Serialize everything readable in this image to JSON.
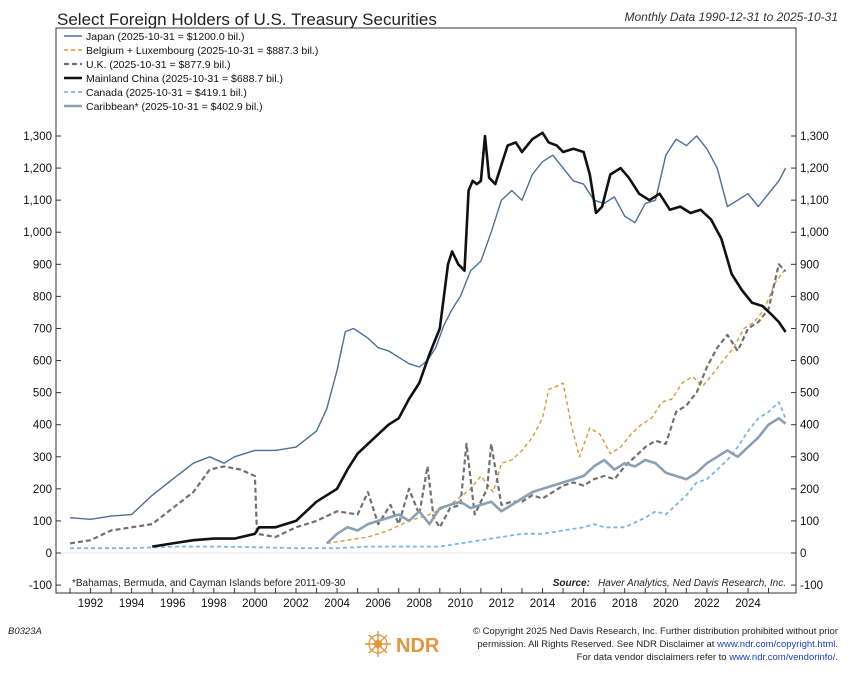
{
  "header": {
    "title": "Select Foreign Holders of U.S. Treasury Securities",
    "subtitle": "Monthly Data 1990-12-31 to 2025-10-31"
  },
  "colors": {
    "japan": "#4a6f9c",
    "belgium": "#e0963a",
    "uk": "#707070",
    "china": "#111111",
    "canada": "#7ab6e6",
    "caribbean": "#8aa0b4",
    "logo": "#e0963a"
  },
  "chart_data": {
    "type": "line",
    "title": "Select Foreign Holders of U.S. Treasury Securities",
    "xlabel": "",
    "ylabel": "",
    "xlim": [
      1991.0,
      2025.85
    ],
    "ylim": [
      -100,
      1350
    ],
    "y_ticks": [
      -100,
      0,
      100,
      200,
      300,
      400,
      500,
      600,
      700,
      800,
      900,
      1000,
      1100,
      1200,
      1300
    ],
    "y_tick_labels": [
      "-100",
      "0",
      "100",
      "200",
      "300",
      "400",
      "500",
      "600",
      "700",
      "800",
      "900",
      "1,000",
      "1,100",
      "1,200",
      "1,300"
    ],
    "x_ticks": [
      1992,
      1994,
      1996,
      1998,
      2000,
      2002,
      2004,
      2006,
      2008,
      2010,
      2012,
      2014,
      2016,
      2018,
      2020,
      2022,
      2024
    ],
    "legend_position": "top-left",
    "series": [
      {
        "key": "japan",
        "name": "Japan (2025-10-31 = $1200.0 bil.)",
        "style": "solid",
        "width": 1.4,
        "x": [
          1991.0,
          1992.0,
          1993.0,
          1994.0,
          1995.0,
          1996.0,
          1997.0,
          1997.8,
          1998.5,
          1999.0,
          2000.0,
          2001.0,
          2002.0,
          2003.0,
          2003.5,
          2004.0,
          2004.4,
          2004.8,
          2005.5,
          2006.0,
          2006.5,
          2007.0,
          2007.5,
          2008.0,
          2008.4,
          2008.8,
          2009.2,
          2009.6,
          2010.0,
          2010.5,
          2011.0,
          2011.5,
          2012.0,
          2012.5,
          2013.0,
          2013.5,
          2014.0,
          2014.5,
          2015.0,
          2015.5,
          2016.0,
          2016.5,
          2017.0,
          2017.5,
          2018.0,
          2018.5,
          2019.0,
          2019.5,
          2020.0,
          2020.5,
          2021.0,
          2021.5,
          2022.0,
          2022.5,
          2023.0,
          2023.5,
          2024.0,
          2024.5,
          2025.0,
          2025.5,
          2025.83
        ],
        "values": [
          110,
          105,
          115,
          120,
          180,
          230,
          280,
          300,
          280,
          300,
          320,
          320,
          330,
          380,
          450,
          570,
          690,
          700,
          670,
          640,
          630,
          610,
          590,
          580,
          600,
          640,
          710,
          760,
          800,
          880,
          910,
          1000,
          1100,
          1130,
          1100,
          1180,
          1220,
          1240,
          1200,
          1160,
          1150,
          1100,
          1090,
          1110,
          1050,
          1030,
          1090,
          1100,
          1240,
          1290,
          1270,
          1300,
          1260,
          1200,
          1080,
          1100,
          1120,
          1080,
          1120,
          1160,
          1200
        ]
      },
      {
        "key": "belgium",
        "name": "Belgium + Luxembourg (2025-10-31 = $887.3 bil.)",
        "style": "dashed",
        "width": 1.4,
        "x": [
          2003.5,
          2004.5,
          2005.5,
          2006.5,
          2007.5,
          2008.5,
          2009.5,
          2010.5,
          2011.0,
          2011.6,
          2012.0,
          2012.5,
          2013.0,
          2013.5,
          2014.0,
          2014.3,
          2014.7,
          2015.0,
          2015.4,
          2015.8,
          2016.3,
          2016.8,
          2017.3,
          2017.8,
          2018.3,
          2018.8,
          2019.3,
          2019.8,
          2020.3,
          2020.8,
          2021.3,
          2021.8,
          2022.3,
          2022.8,
          2023.3,
          2023.8,
          2024.3,
          2024.8,
          2025.3,
          2025.83
        ],
        "values": [
          30,
          40,
          50,
          70,
          100,
          120,
          150,
          200,
          240,
          190,
          280,
          290,
          320,
          360,
          420,
          510,
          520,
          530,
          400,
          300,
          390,
          370,
          310,
          330,
          370,
          400,
          420,
          470,
          480,
          530,
          550,
          520,
          560,
          600,
          640,
          700,
          720,
          760,
          840,
          887
        ]
      },
      {
        "key": "uk",
        "name": "U.K. (2025-10-31 = $877.9 bil.)",
        "style": "dashed",
        "width": 2.2,
        "x": [
          1991.0,
          1992.0,
          1993.0,
          1994.0,
          1995.0,
          1996.0,
          1997.0,
          1997.8,
          1998.5,
          1999.3,
          2000.0,
          2000.1,
          2001.0,
          2002.0,
          2003.0,
          2004.0,
          2005.0,
          2005.5,
          2006.0,
          2006.6,
          2007.0,
          2007.5,
          2008.0,
          2008.4,
          2008.7,
          2009.0,
          2009.5,
          2010.0,
          2010.3,
          2010.7,
          2011.0,
          2011.3,
          2011.5,
          2012.0,
          2012.5,
          2013.0,
          2013.5,
          2014.0,
          2014.5,
          2015.0,
          2015.5,
          2016.0,
          2016.5,
          2017.0,
          2017.5,
          2018.0,
          2018.5,
          2019.0,
          2019.5,
          2020.0,
          2020.5,
          2021.0,
          2021.5,
          2022.0,
          2022.5,
          2023.0,
          2023.5,
          2024.0,
          2024.5,
          2025.0,
          2025.5,
          2025.83
        ],
        "values": [
          30,
          40,
          70,
          80,
          90,
          140,
          190,
          260,
          270,
          260,
          240,
          60,
          50,
          80,
          100,
          130,
          120,
          190,
          90,
          150,
          90,
          200,
          120,
          270,
          110,
          80,
          140,
          150,
          340,
          120,
          160,
          200,
          340,
          150,
          160,
          160,
          180,
          170,
          190,
          210,
          220,
          210,
          230,
          240,
          230,
          270,
          300,
          330,
          350,
          340,
          440,
          460,
          500,
          580,
          640,
          680,
          630,
          700,
          720,
          760,
          900,
          878
        ]
      },
      {
        "key": "china",
        "name": "Mainland China (2025-10-31 = $688.7 bil.)",
        "style": "solid",
        "width": 2.6,
        "x": [
          1995.0,
          1996.0,
          1997.0,
          1998.0,
          1999.0,
          2000.0,
          2000.2,
          2001.0,
          2002.0,
          2003.0,
          2004.0,
          2004.5,
          2005.0,
          2005.5,
          2006.0,
          2006.5,
          2007.0,
          2007.5,
          2008.0,
          2008.5,
          2009.0,
          2009.4,
          2009.6,
          2009.9,
          2010.2,
          2010.4,
          2010.6,
          2010.8,
          2011.0,
          2011.2,
          2011.4,
          2011.7,
          2012.0,
          2012.3,
          2012.7,
          2013.0,
          2013.5,
          2014.0,
          2014.3,
          2014.7,
          2015.0,
          2015.5,
          2016.0,
          2016.3,
          2016.6,
          2016.9,
          2017.3,
          2017.8,
          2018.2,
          2018.7,
          2019.2,
          2019.7,
          2020.2,
          2020.7,
          2021.2,
          2021.7,
          2022.2,
          2022.7,
          2023.2,
          2023.7,
          2024.2,
          2024.7,
          2025.2,
          2025.5,
          2025.83
        ],
        "values": [
          20,
          30,
          40,
          45,
          45,
          60,
          80,
          80,
          100,
          160,
          200,
          260,
          310,
          340,
          370,
          400,
          420,
          480,
          530,
          620,
          700,
          900,
          940,
          900,
          880,
          1130,
          1160,
          1150,
          1160,
          1300,
          1170,
          1150,
          1210,
          1270,
          1280,
          1250,
          1290,
          1310,
          1280,
          1270,
          1250,
          1260,
          1250,
          1180,
          1060,
          1080,
          1180,
          1200,
          1170,
          1120,
          1100,
          1120,
          1070,
          1080,
          1060,
          1070,
          1040,
          980,
          870,
          820,
          780,
          770,
          740,
          720,
          689
        ]
      },
      {
        "key": "canada",
        "name": "Canada (2025-10-31 = $419.1 bil.)",
        "style": "dashed",
        "width": 1.8,
        "x": [
          1991.0,
          1992.0,
          1994.0,
          1996.0,
          1998.0,
          2000.0,
          2002.0,
          2004.0,
          2005.5,
          2006.0,
          2007.0,
          2008.0,
          2009.0,
          2010.0,
          2011.0,
          2012.0,
          2013.0,
          2014.0,
          2015.0,
          2016.0,
          2016.5,
          2017.0,
          2018.0,
          2019.0,
          2019.5,
          2020.0,
          2020.5,
          2021.0,
          2021.5,
          2022.0,
          2022.5,
          2023.0,
          2023.5,
          2024.0,
          2024.5,
          2025.0,
          2025.5,
          2025.83
        ],
        "values": [
          15,
          15,
          15,
          20,
          20,
          18,
          15,
          15,
          20,
          20,
          20,
          20,
          20,
          30,
          40,
          50,
          60,
          60,
          70,
          80,
          90,
          80,
          80,
          110,
          130,
          120,
          150,
          180,
          220,
          230,
          260,
          290,
          330,
          380,
          420,
          440,
          470,
          419
        ]
      },
      {
        "key": "caribbean",
        "name": "Caribbean* (2025-10-31 = $402.9 bil.)",
        "style": "solid",
        "width": 2.6,
        "x": [
          2003.5,
          2004.0,
          2004.5,
          2005.0,
          2005.5,
          2006.0,
          2006.5,
          2007.0,
          2007.5,
          2008.0,
          2008.5,
          2009.0,
          2009.5,
          2010.0,
          2010.5,
          2011.0,
          2011.5,
          2012.0,
          2012.5,
          2013.0,
          2013.5,
          2014.0,
          2014.5,
          2015.0,
          2015.5,
          2016.0,
          2016.5,
          2017.0,
          2017.5,
          2018.0,
          2018.5,
          2019.0,
          2019.5,
          2020.0,
          2020.5,
          2021.0,
          2021.5,
          2022.0,
          2022.5,
          2023.0,
          2023.5,
          2024.0,
          2024.5,
          2025.0,
          2025.5,
          2025.83
        ],
        "values": [
          30,
          60,
          80,
          70,
          90,
          100,
          110,
          120,
          100,
          130,
          90,
          140,
          150,
          160,
          140,
          150,
          160,
          130,
          150,
          170,
          190,
          200,
          210,
          220,
          230,
          240,
          270,
          290,
          260,
          280,
          270,
          290,
          280,
          250,
          240,
          230,
          250,
          280,
          300,
          320,
          300,
          330,
          360,
          400,
          420,
          403
        ]
      }
    ]
  },
  "notes": {
    "footnote": "*Bahamas, Bermuda, and Cayman Islands before 2011-09-30",
    "source_label": "Source:",
    "source_text": "Haver Analytics, Ned Davis Research, Inc."
  },
  "footer": {
    "code": "B0323A",
    "logo_text": "NDR",
    "line1": "© Copyright 2025 Ned Davis Research, Inc. Further distribution prohibited without prior",
    "line2_pre": "permission. All Rights Reserved. See NDR Disclaimer at ",
    "line2_link": "www.ndr.com/copyright.html",
    "line2_post": ".",
    "line3_pre": "For data vendor disclaimers refer to ",
    "line3_link": "www.ndr.com/vendorinfo/",
    "line3_post": "."
  }
}
